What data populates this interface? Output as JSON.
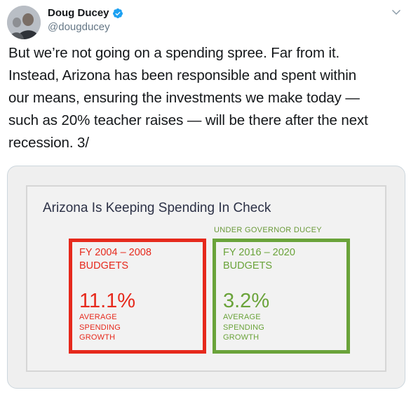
{
  "tweet": {
    "display_name": "Doug Ducey",
    "handle": "@dougducey",
    "text_lines": [
      "But we’re not going on a spending spree. Far from it.",
      "Instead, Arizona has been responsible and spent within",
      "our means, ensuring the investments we make today —",
      "such as 20% teacher raises — will be there after the next",
      "recession. 3/"
    ]
  },
  "icons": {
    "verified": "verified-badge-icon",
    "caret": "chevron-down-icon",
    "avatar": "profile-avatar"
  },
  "colors": {
    "verified_blue": "#1da1f2",
    "red": "#e6291c",
    "green": "#6aa33a",
    "title_navy": "#2c3146"
  },
  "graphic": {
    "title": "Arizona Is Keeping Spending In Check",
    "under_label": "UNDER GOVERNOR DUCEY",
    "cards": [
      {
        "period": "FY 2004 – 2008",
        "budgets": "BUDGETS",
        "value": "11.1%",
        "desc1": "AVERAGE",
        "desc2": "SPENDING",
        "desc3": "GROWTH"
      },
      {
        "period": "FY 2016 – 2020",
        "budgets": "BUDGETS",
        "value": "3.2%",
        "desc1": "AVERAGE",
        "desc2": "SPENDING",
        "desc3": "GROWTH"
      }
    ]
  }
}
